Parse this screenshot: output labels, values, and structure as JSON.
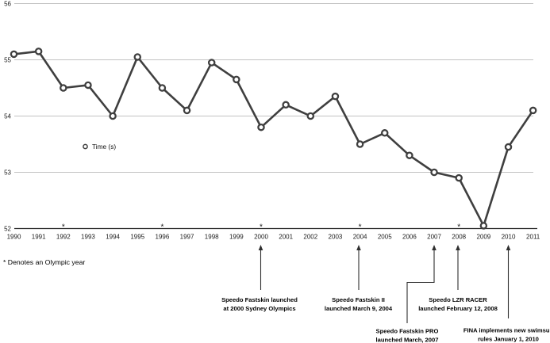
{
  "chart_data": {
    "type": "line",
    "title": "",
    "xlabel": "",
    "ylabel": "",
    "x": [
      1990,
      1991,
      1992,
      1993,
      1994,
      1995,
      1996,
      1997,
      1998,
      1999,
      2000,
      2001,
      2002,
      2003,
      2004,
      2005,
      2006,
      2007,
      2008,
      2009,
      2010,
      2011
    ],
    "series": [
      {
        "name": "Time (s)",
        "values": [
          55.1,
          55.15,
          54.5,
          54.55,
          54.0,
          55.05,
          54.5,
          54.1,
          54.95,
          54.65,
          53.8,
          54.2,
          54.0,
          54.35,
          53.5,
          53.7,
          53.3,
          53.0,
          52.9,
          52.05,
          53.45,
          54.1
        ]
      }
    ],
    "ylim": [
      52,
      56
    ],
    "yticks": [
      52,
      53,
      54,
      55,
      56
    ],
    "grid": true,
    "legend_position": "inside-left",
    "olympic_years": [
      1992,
      1996,
      2000,
      2004,
      2008
    ]
  },
  "annotations": [
    {
      "year": 2000,
      "lines": [
        "Speedo Fastskin launched",
        "at 2000 Sydney Olympics"
      ]
    },
    {
      "year": 2004,
      "lines": [
        "Speedo Fastskin II",
        "launched March 9, 2004"
      ]
    },
    {
      "year": 2007,
      "lines": [
        "Speedo Fastskin PRO",
        "launched March, 2007"
      ]
    },
    {
      "year": 2008,
      "lines": [
        "Speedo LZR RACER",
        "launched February 12, 2008"
      ]
    },
    {
      "year": 2010,
      "lines": [
        "FINA implements new swimsuit",
        "rules January 1, 2010"
      ]
    }
  ],
  "footnote": "* Denotes an Olympic year",
  "colors": {
    "line": "#3f3f3f",
    "marker_fill": "#ffffff",
    "grid": "#c2c2c2",
    "axis": "#2b2b2b",
    "annotation_line": "#2f2f2f",
    "text": "#000000"
  }
}
